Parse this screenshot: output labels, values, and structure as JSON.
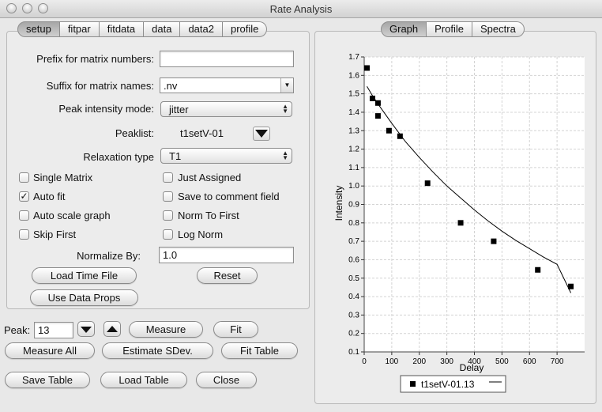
{
  "window": {
    "title": "Rate Analysis"
  },
  "left_tabs": [
    "setup",
    "fitpar",
    "fitdata",
    "data",
    "data2",
    "profile"
  ],
  "right_tabs": [
    "Graph",
    "Profile",
    "Spectra"
  ],
  "setup": {
    "prefix_label": "Prefix for matrix numbers:",
    "prefix_value": "",
    "suffix_label": "Suffix for matrix names:",
    "suffix_value": ".nv",
    "mode_label": "Peak intensity mode:",
    "mode_value": "jitter",
    "peaklist_label": "Peaklist:",
    "peaklist_value": "t1setV-01",
    "relax_label": "Relaxation type",
    "relax_value": "T1",
    "normalize_label": "Normalize By:",
    "normalize_value": "1.0"
  },
  "checkboxes": [
    {
      "label": "Single Matrix",
      "checked": false
    },
    {
      "label": "Just Assigned",
      "checked": false
    },
    {
      "label": "Auto fit",
      "checked": true
    },
    {
      "label": "Save to comment field",
      "checked": false
    },
    {
      "label": "Auto scale graph",
      "checked": false
    },
    {
      "label": "Norm To First",
      "checked": false
    },
    {
      "label": "Skip First",
      "checked": false
    },
    {
      "label": "Log Norm",
      "checked": false
    }
  ],
  "buttons": {
    "load_time_file": "Load Time File",
    "reset": "Reset",
    "use_data_props": "Use Data Props",
    "measure": "Measure",
    "fit": "Fit",
    "measure_all": "Measure All",
    "estimate_sdev": "Estimate SDev.",
    "fit_table": "Fit Table",
    "save_table": "Save Table",
    "load_table": "Load Table",
    "close": "Close"
  },
  "peak": {
    "label": "Peak:",
    "value": "13"
  },
  "colors": {
    "plot_bg": "#ffffff",
    "grid": "#d4d4d4",
    "point": "#000000"
  },
  "chart_data": {
    "type": "scatter",
    "xlabel": "Delay",
    "ylabel": "Intensity",
    "xlim": [
      0,
      800
    ],
    "ylim": [
      0.1,
      1.7
    ],
    "x_ticks": [
      0,
      100,
      200,
      300,
      400,
      500,
      600,
      700
    ],
    "y_ticks": [
      0.1,
      0.2,
      0.3,
      0.4,
      0.5,
      0.6,
      0.7,
      0.8,
      0.9,
      1.0,
      1.1,
      1.2,
      1.3,
      1.4,
      1.5,
      1.6,
      1.7
    ],
    "grid": true,
    "legend": "bottom",
    "series": [
      {
        "name": "t1setV-01.13",
        "points": [
          [
            10,
            1.64
          ],
          [
            30,
            1.475
          ],
          [
            50,
            1.45
          ],
          [
            50,
            1.38
          ],
          [
            90,
            1.3
          ],
          [
            130,
            1.27
          ],
          [
            230,
            1.015
          ],
          [
            350,
            0.8
          ],
          [
            470,
            0.7
          ],
          [
            630,
            0.545
          ],
          [
            750,
            0.455
          ]
        ],
        "fit": [
          [
            10,
            1.54
          ],
          [
            30,
            1.49
          ],
          [
            50,
            1.445
          ],
          [
            100,
            1.34
          ],
          [
            150,
            1.24
          ],
          [
            200,
            1.155
          ],
          [
            250,
            1.075
          ],
          [
            300,
            1.0
          ],
          [
            350,
            0.935
          ],
          [
            400,
            0.87
          ],
          [
            450,
            0.81
          ],
          [
            500,
            0.755
          ],
          [
            550,
            0.705
          ],
          [
            600,
            0.66
          ],
          [
            650,
            0.615
          ],
          [
            700,
            0.575
          ],
          [
            750,
            0.42
          ]
        ]
      }
    ]
  }
}
